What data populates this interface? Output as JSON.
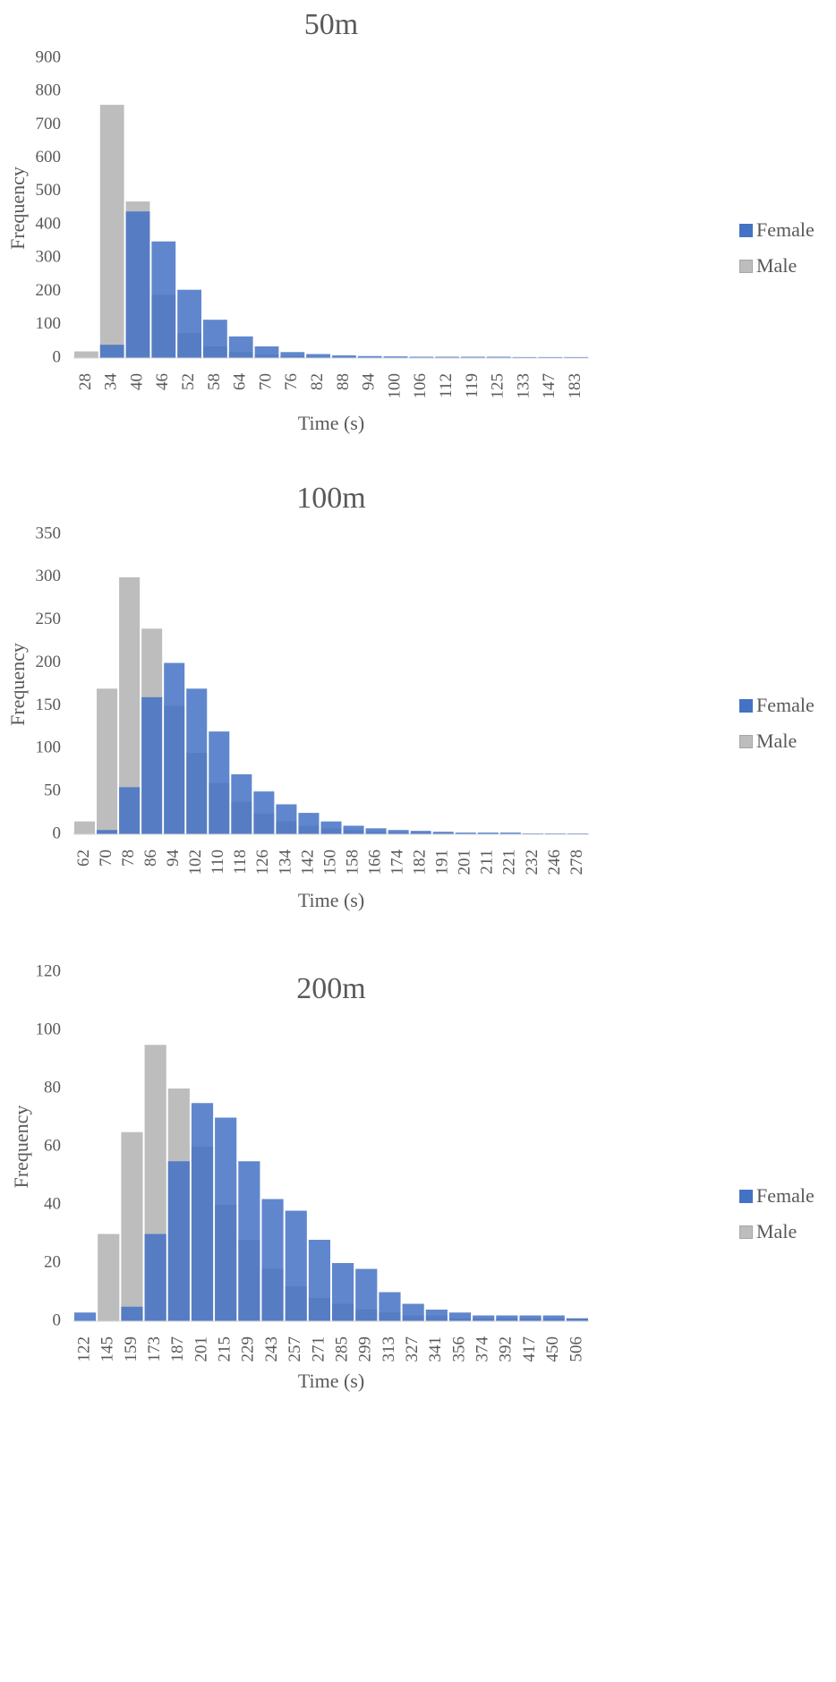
{
  "colors": {
    "female": "#4472C4",
    "male": "#BDBDBD"
  },
  "chart_data": [
    {
      "type": "bar",
      "title": "50m",
      "xlabel": "Time (s)",
      "ylabel": "Frequency",
      "ylim": [
        0,
        900
      ],
      "yticks": [
        0,
        100,
        200,
        300,
        400,
        500,
        600,
        700,
        800,
        900
      ],
      "xticklabels": [
        "28",
        "34",
        "40",
        "46",
        "52",
        "58",
        "64",
        "70",
        "76",
        "82",
        "88",
        "94",
        "100",
        "106",
        "112",
        "119",
        "125",
        "133",
        "147",
        "183"
      ],
      "grid": false,
      "legend_position": "right",
      "overlay": true,
      "series": [
        {
          "name": "Female",
          "color": "female",
          "x": [
            "28",
            "34",
            "40",
            "46",
            "52",
            "58",
            "64",
            "70",
            "76",
            "82",
            "88",
            "94",
            "100",
            "106",
            "112",
            "119",
            "125",
            "133",
            "147",
            "183"
          ],
          "values": [
            0,
            40,
            440,
            350,
            205,
            115,
            65,
            35,
            18,
            12,
            8,
            6,
            5,
            4,
            4,
            4,
            4,
            3,
            3,
            3
          ]
        },
        {
          "name": "Male",
          "color": "male",
          "x": [
            "28",
            "34",
            "40",
            "46",
            "52",
            "58",
            "64",
            "70",
            "76",
            "82",
            "88",
            "94",
            "100",
            "106",
            "112",
            "119",
            "125",
            "133",
            "147",
            "183"
          ],
          "values": [
            20,
            760,
            470,
            190,
            75,
            35,
            18,
            10,
            6,
            4,
            3,
            2,
            2,
            1,
            1,
            1,
            1,
            1,
            1,
            1
          ]
        }
      ]
    },
    {
      "type": "bar",
      "title": "100m",
      "xlabel": "Time (s)",
      "ylabel": "Frequency",
      "ylim": [
        0,
        350
      ],
      "yticks": [
        0,
        50,
        100,
        150,
        200,
        250,
        300,
        350
      ],
      "xticklabels": [
        "62",
        "70",
        "78",
        "86",
        "94",
        "102",
        "110",
        "118",
        "126",
        "134",
        "142",
        "150",
        "158",
        "166",
        "174",
        "182",
        "191",
        "201",
        "211",
        "221",
        "232",
        "246",
        "278"
      ],
      "grid": false,
      "legend_position": "right",
      "overlay": true,
      "series": [
        {
          "name": "Female",
          "color": "female",
          "x": [
            "62",
            "70",
            "78",
            "86",
            "94",
            "102",
            "110",
            "118",
            "126",
            "134",
            "142",
            "150",
            "158",
            "166",
            "174",
            "182",
            "191",
            "201",
            "211",
            "221",
            "232",
            "246",
            "278"
          ],
          "values": [
            0,
            5,
            55,
            160,
            200,
            170,
            120,
            70,
            50,
            35,
            25,
            15,
            10,
            7,
            5,
            4,
            3,
            2,
            2,
            2,
            1,
            1,
            1
          ]
        },
        {
          "name": "Male",
          "color": "male",
          "x": [
            "62",
            "70",
            "78",
            "86",
            "94",
            "102",
            "110",
            "118",
            "126",
            "134",
            "142",
            "150",
            "158",
            "166",
            "174",
            "182",
            "191",
            "201",
            "211",
            "221",
            "232",
            "246",
            "278"
          ],
          "values": [
            15,
            170,
            300,
            240,
            150,
            95,
            60,
            38,
            24,
            15,
            10,
            7,
            5,
            3,
            2,
            2,
            1,
            1,
            1,
            1,
            1,
            1,
            1
          ]
        }
      ]
    },
    {
      "type": "bar",
      "title": "200m",
      "xlabel": "Time (s)",
      "ylabel": "Frequency",
      "ylim": [
        0,
        120
      ],
      "yticks": [
        0,
        20,
        40,
        60,
        80,
        100,
        120
      ],
      "xticklabels": [
        "122",
        "145",
        "159",
        "173",
        "187",
        "201",
        "215",
        "229",
        "243",
        "257",
        "271",
        "285",
        "299",
        "313",
        "327",
        "341",
        "356",
        "374",
        "392",
        "417",
        "450",
        "506"
      ],
      "grid": false,
      "legend_position": "right",
      "overlay": true,
      "series": [
        {
          "name": "Female",
          "color": "female",
          "x": [
            "122",
            "145",
            "159",
            "173",
            "187",
            "201",
            "215",
            "229",
            "243",
            "257",
            "271",
            "285",
            "299",
            "313",
            "327",
            "341",
            "356",
            "374",
            "392",
            "417",
            "450",
            "506"
          ],
          "values": [
            3,
            0,
            5,
            30,
            55,
            75,
            70,
            55,
            42,
            38,
            28,
            20,
            18,
            10,
            6,
            4,
            3,
            2,
            2,
            2,
            2,
            1
          ]
        },
        {
          "name": "Male",
          "color": "male",
          "x": [
            "122",
            "145",
            "159",
            "173",
            "187",
            "201",
            "215",
            "229",
            "243",
            "257",
            "271",
            "285",
            "299",
            "313",
            "327",
            "341",
            "356",
            "374",
            "392",
            "417",
            "450",
            "506"
          ],
          "values": [
            0,
            30,
            65,
            95,
            80,
            60,
            40,
            28,
            18,
            12,
            8,
            6,
            4,
            3,
            2,
            2,
            1,
            1,
            1,
            1,
            1,
            1
          ]
        }
      ]
    }
  ]
}
